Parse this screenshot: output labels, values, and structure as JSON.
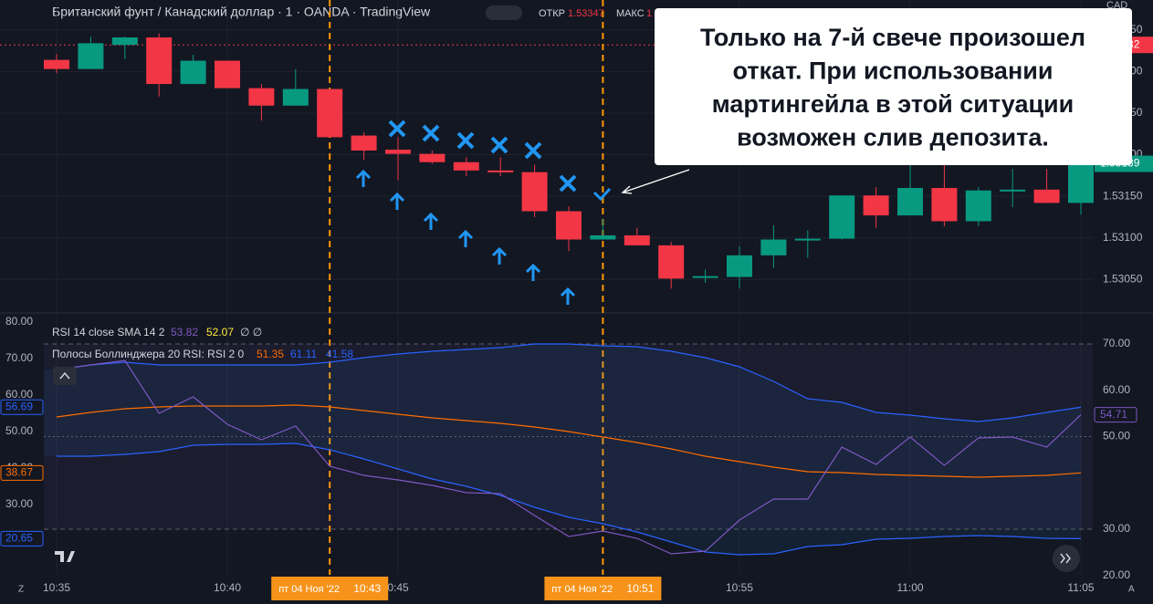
{
  "header": {
    "symbol": "Британский фунт / Канадский доллар · 1 · OANDA · TradingView",
    "open_label": "ОТКР",
    "open_value": "1.53347",
    "high_label": "МАКС",
    "high_value": "1",
    "currency": "CAD"
  },
  "annotation": [
    "Только на 7-й свече произошел",
    "откат. При использовании",
    "мартингейла в этой ситуации",
    "возможен слив депозита."
  ],
  "legend": {
    "rsi": {
      "title": "RSI 14 close SMA 14 2",
      "v1": "53.82",
      "v2": "52.07",
      "v3": "∅ ∅"
    },
    "bb": {
      "title": "Полосы Боллинджера 20 RSI: RSI 2 0",
      "v1": "51.35",
      "v2": "61.11",
      "v3": "41.58"
    }
  },
  "crosshairs": [
    {
      "date": "пт 04 Ноя '22",
      "time": "10:43"
    },
    {
      "date": "пт 04 Ноя '22",
      "time": "10:51"
    }
  ],
  "corner_labels": [
    "Z",
    "A"
  ],
  "chart_data": [
    {
      "type": "candlestick",
      "up_color": "#089981",
      "down_color": "#f23645",
      "categories": [
        "10:35",
        null,
        null,
        null,
        null,
        "10:40",
        null,
        null,
        null,
        null,
        "0:45",
        null,
        null,
        null,
        null,
        null,
        null,
        null,
        null,
        null,
        "10:55",
        null,
        null,
        null,
        null,
        "11:00",
        null,
        null,
        null,
        null,
        "11:05"
      ],
      "open": [
        1.53314,
        1.53303,
        1.53332,
        1.53341,
        1.53285,
        1.53313,
        1.5328,
        1.53259,
        1.53279,
        1.53223,
        1.53206,
        1.53201,
        1.53191,
        1.53181,
        1.53179,
        1.53132,
        1.53098,
        1.53103,
        1.53091,
        1.53052,
        1.53053,
        1.53079,
        1.53098,
        1.53099,
        1.53151,
        1.53127,
        1.5316,
        1.5312,
        1.53157,
        1.53158,
        1.53142
      ],
      "high": [
        1.53321,
        1.53342,
        1.53342,
        1.53346,
        1.5332,
        1.53313,
        1.53285,
        1.53303,
        1.53279,
        1.53227,
        1.53221,
        1.53205,
        1.53197,
        1.53197,
        1.53188,
        1.53138,
        1.53123,
        1.53112,
        1.53095,
        1.53062,
        1.5309,
        1.53115,
        1.53109,
        1.53151,
        1.53161,
        1.53189,
        1.53189,
        1.53161,
        1.53183,
        1.53183,
        1.5321
      ],
      "low": [
        1.53298,
        1.53303,
        1.53315,
        1.5327,
        1.53285,
        1.5328,
        1.53241,
        1.53259,
        1.53221,
        1.53194,
        1.53169,
        1.53189,
        1.53174,
        1.53174,
        1.53125,
        1.53084,
        1.53098,
        1.53091,
        1.53039,
        1.53046,
        1.53039,
        1.53064,
        1.53076,
        1.53098,
        1.53112,
        1.53127,
        1.53114,
        1.53114,
        1.53137,
        1.53142,
        1.53128
      ],
      "close": [
        1.53303,
        1.53334,
        1.53341,
        1.53285,
        1.53313,
        1.5328,
        1.53259,
        1.53279,
        1.53221,
        1.53205,
        1.53201,
        1.53191,
        1.53181,
        1.53179,
        1.53132,
        1.53098,
        1.53103,
        1.53091,
        1.53051,
        1.53054,
        1.53079,
        1.53098,
        1.53099,
        1.53151,
        1.53127,
        1.5316,
        1.5312,
        1.53157,
        1.53158,
        1.53142,
        1.53189
      ],
      "ylim": [
        1.53013,
        1.53386
      ],
      "yticks": [
        {
          "value": 1.5335,
          "label": "1.53350"
        },
        {
          "value": 1.533,
          "label": "1.53300"
        },
        {
          "value": 1.5325,
          "label": "1.53250"
        },
        {
          "value": 1.532,
          "label": "1.53200"
        },
        {
          "value": 1.5315,
          "label": "1.53150"
        },
        {
          "value": 1.531,
          "label": "1.53100"
        },
        {
          "value": 1.5305,
          "label": "1.53050"
        }
      ],
      "price_line": {
        "value": 1.53332,
        "label": "1.53332"
      }
    },
    {
      "type": "line",
      "ylim": [
        16.21,
        76.7
      ],
      "y2lim": [
        5.75,
        82.5
      ],
      "yticks": [
        {
          "value": 70,
          "label": "70.00"
        },
        {
          "value": 60,
          "label": "60.00"
        },
        {
          "value": 50,
          "label": "50.00"
        },
        {
          "value": 30,
          "label": "30.00"
        },
        {
          "value": 20,
          "label": "20.00"
        }
      ],
      "y2ticks": [
        {
          "value": 80,
          "label": "80.00"
        },
        {
          "value": 70,
          "label": "70.00"
        },
        {
          "value": 60,
          "label": "60.00"
        },
        {
          "value": 50,
          "label": "50.00"
        },
        {
          "value": 40,
          "label": "40.00"
        },
        {
          "value": 30,
          "label": "30.00"
        }
      ],
      "levels": [
        70,
        50,
        30
      ],
      "series": [
        {
          "color": "#2962ff",
          "axis": "y2",
          "values": [
            67,
            68.25,
            69,
            68.25,
            68.25,
            68.25,
            68.25,
            68.25,
            69,
            70.25,
            71.25,
            72,
            72.5,
            73,
            74,
            74,
            73.5,
            73.25,
            72,
            70.25,
            67.75,
            63.75,
            59,
            58,
            55.25,
            54.5,
            53.5,
            52.75,
            53.75,
            55.25,
            56.69
          ]
        },
        {
          "color": "#ff6d00",
          "axis": "y2",
          "values": [
            54,
            55.25,
            56.25,
            56.75,
            57,
            57,
            57,
            57.25,
            56.75,
            55.75,
            54.75,
            53.75,
            53,
            52.25,
            51.25,
            50,
            48.5,
            47,
            45.25,
            43.25,
            41.75,
            40.25,
            39,
            38.75,
            38.25,
            38,
            37.75,
            37.5,
            37.75,
            38,
            38.67
          ]
        },
        {
          "color": "#2962ff",
          "axis": "y2",
          "values": [
            43.25,
            43.25,
            43.75,
            44.5,
            46.25,
            46.5,
            46.5,
            46.75,
            45,
            42.5,
            39.75,
            37,
            35,
            32.5,
            29.25,
            26.5,
            24.75,
            22.5,
            19.75,
            17,
            16.25,
            16.5,
            18.5,
            19,
            20.5,
            20.75,
            21.25,
            21.5,
            21.25,
            20.75,
            20.65
          ]
        },
        {
          "color": "#7e57c2",
          "axis": "y",
          "values": [
            64.48,
            65.47,
            66.45,
            55.02,
            58.57,
            52.66,
            49.31,
            52.27,
            43.6,
            41.63,
            40.64,
            39.46,
            37.88,
            37.68,
            32.96,
            28.42,
            29.61,
            28.03,
            24.68,
            25.27,
            31.97,
            36.5,
            36.5,
            47.73,
            43.99,
            49.9,
            43.79,
            49.7,
            49.9,
            47.73,
            54.71
          ]
        }
      ]
    }
  ]
}
